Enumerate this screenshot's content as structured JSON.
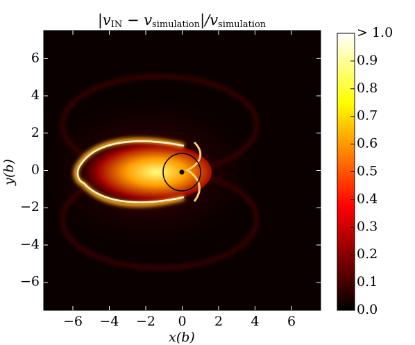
{
  "chart_data": {
    "type": "heatmap",
    "title": [
      "|v",
      "IN",
      " − v",
      "simulation",
      "|/v",
      "simulation"
    ],
    "x_label": "x(b)",
    "y_label": "y(b)",
    "xlim": [
      -7.6,
      7.6
    ],
    "ylim": [
      -7.5,
      7.5
    ],
    "xticks": [
      {
        "value": -6,
        "label": "−6"
      },
      {
        "value": -4,
        "label": "−4"
      },
      {
        "value": -2,
        "label": "−2"
      },
      0,
      2,
      4,
      6
    ],
    "yticks": [
      {
        "value": -6,
        "label": "−6"
      },
      {
        "value": -4,
        "label": "−4"
      },
      {
        "value": -2,
        "label": "−2"
      },
      0,
      2,
      4,
      6
    ],
    "colormap": "hot",
    "clim": [
      0,
      1
    ],
    "cticks": [
      {
        "value": 0,
        "label": "0.0"
      },
      {
        "value": 0.1,
        "label": "0.1"
      },
      {
        "value": 0.2,
        "label": "0.2"
      },
      {
        "value": 0.3,
        "label": "0.3"
      },
      {
        "value": 0.4,
        "label": "0.4"
      },
      {
        "value": 0.5,
        "label": "0.5"
      },
      {
        "value": 0.6,
        "label": "0.6"
      },
      {
        "value": 0.7,
        "label": "0.7"
      },
      {
        "value": 0.8,
        "label": "0.8"
      },
      {
        "value": 0.9,
        "label": "0.9"
      },
      {
        "value": 1,
        "label": "> 1.0"
      }
    ]
  }
}
